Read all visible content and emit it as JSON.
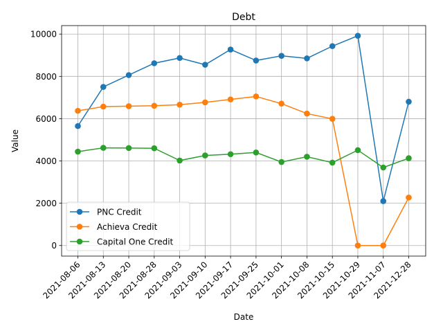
{
  "chart_data": {
    "type": "line",
    "title": "Debt",
    "xlabel": "Date",
    "ylabel": "Value",
    "categories": [
      "2021-08-06",
      "2021-08-13",
      "2021-08-20",
      "2021-08-28",
      "2021-09-03",
      "2021-09-10",
      "2021-09-17",
      "2021-09-25",
      "2021-10-01",
      "2021-10-08",
      "2021-10-15",
      "2021-10-29",
      "2021-11-07",
      "2021-12-28"
    ],
    "ylim": [
      -500,
      10400
    ],
    "yticks": [
      0,
      2000,
      4000,
      6000,
      8000,
      10000
    ],
    "grid": true,
    "legend_position": "lower-left",
    "series": [
      {
        "name": "PNC Credit",
        "color": "#1f77b4",
        "values": [
          5650,
          7500,
          8060,
          8620,
          8870,
          8550,
          9270,
          8750,
          8970,
          8850,
          9430,
          9920,
          2100,
          6800
        ]
      },
      {
        "name": "Achieva Credit",
        "color": "#ff7f0e",
        "values": [
          6370,
          6570,
          6590,
          6610,
          6660,
          6770,
          6910,
          7050,
          6710,
          6240,
          5990,
          0,
          0,
          2270
        ]
      },
      {
        "name": "Capital One Credit",
        "color": "#2ca02c",
        "values": [
          4440,
          4620,
          4610,
          4600,
          4020,
          4260,
          4320,
          4400,
          3950,
          4200,
          3920,
          4510,
          3690,
          4130
        ]
      }
    ]
  }
}
